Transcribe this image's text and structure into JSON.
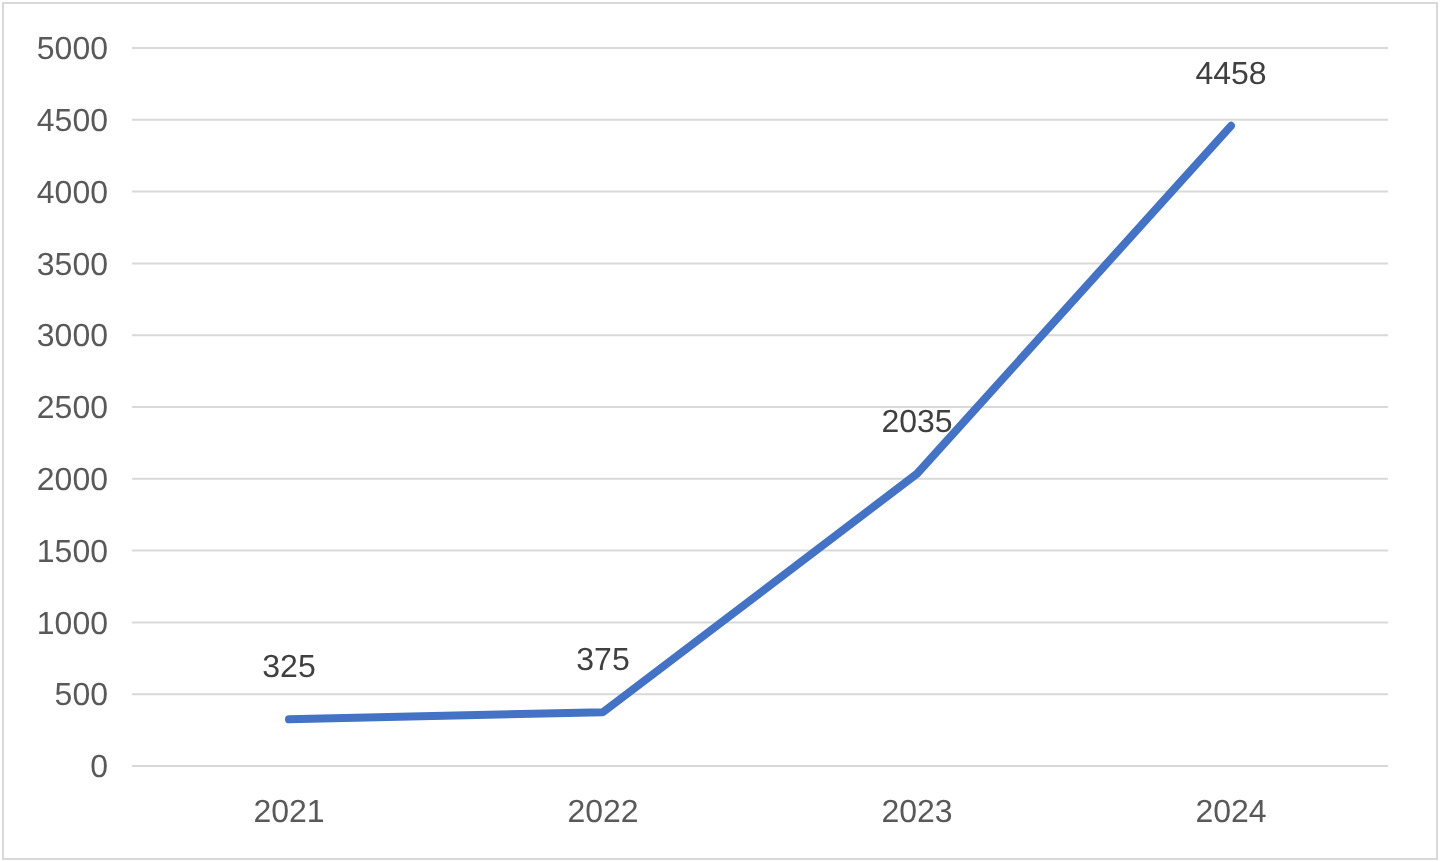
{
  "chart_data": {
    "type": "line",
    "categories": [
      "2021",
      "2022",
      "2023",
      "2024"
    ],
    "series": [
      {
        "color": "#4472c4",
        "values": [
          325,
          375,
          2035,
          4458
        ]
      }
    ],
    "ylim": [
      0,
      5000
    ],
    "yticks": [
      0,
      500,
      1000,
      1500,
      2000,
      2500,
      3000,
      3500,
      4000,
      4500,
      5000
    ],
    "grid": "y",
    "data_labels": true,
    "marker": "none",
    "line_style": "solid"
  }
}
